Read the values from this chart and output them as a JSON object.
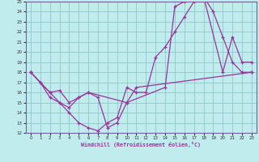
{
  "xlabel": "Windchill (Refroidissement éolien,°C)",
  "xlim": [
    -0.5,
    23.5
  ],
  "ylim": [
    12,
    25
  ],
  "xticks": [
    0,
    1,
    2,
    3,
    4,
    5,
    6,
    7,
    8,
    9,
    10,
    11,
    12,
    13,
    14,
    15,
    16,
    17,
    18,
    19,
    20,
    21,
    22,
    23
  ],
  "yticks": [
    12,
    13,
    14,
    15,
    16,
    17,
    18,
    19,
    20,
    21,
    22,
    23,
    24,
    25
  ],
  "bg_color": "#c0ecee",
  "grid_color": "#90c8cc",
  "line_color": "#993399",
  "spine_color": "#666699",
  "line1_x": [
    0,
    1,
    2,
    3,
    4,
    5,
    6,
    7,
    8,
    9,
    10,
    11,
    12,
    13,
    14,
    15,
    16,
    17,
    18,
    19,
    20,
    21,
    22,
    23
  ],
  "line1_y": [
    18,
    17,
    16,
    15,
    14,
    13,
    12.5,
    12.2,
    13,
    13.5,
    16.5,
    16,
    16,
    19.5,
    20.5,
    22,
    23.5,
    25,
    25.5,
    24,
    21.5,
    19,
    18,
    18
  ],
  "line2_x": [
    0,
    2,
    3,
    4,
    5,
    6,
    10,
    14,
    15,
    16,
    17,
    18,
    20,
    21,
    22,
    23
  ],
  "line2_y": [
    18,
    16,
    16.2,
    15,
    15.5,
    16,
    15,
    16.5,
    24.5,
    25,
    25.5,
    25.5,
    18,
    21.5,
    19,
    19
  ],
  "line3_x": [
    0,
    1,
    2,
    3,
    4,
    5,
    6,
    7,
    8,
    9,
    10,
    11,
    23
  ],
  "line3_y": [
    18,
    17,
    15.5,
    15,
    14.5,
    15.5,
    16,
    15.5,
    12.5,
    13,
    15,
    16.5,
    18
  ]
}
